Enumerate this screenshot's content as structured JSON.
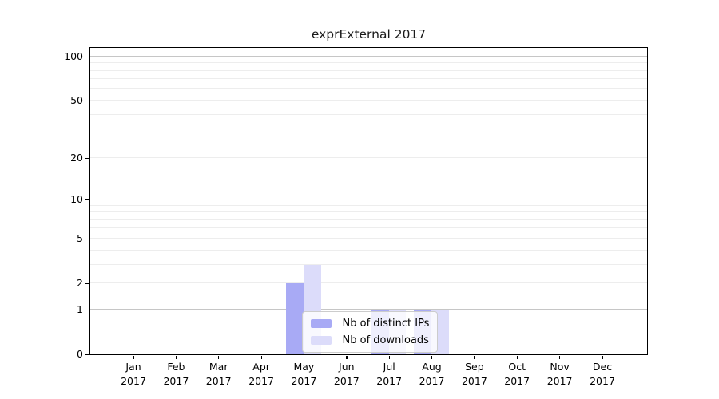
{
  "title": "exprExternal 2017",
  "chart_data": {
    "type": "bar",
    "title": "exprExternal 2017",
    "scale": "log1p",
    "grid": true,
    "categories": [
      "Jan 2017",
      "Feb 2017",
      "Mar 2017",
      "Apr 2017",
      "May 2017",
      "Jun 2017",
      "Jul 2017",
      "Aug 2017",
      "Sep 2017",
      "Oct 2017",
      "Nov 2017",
      "Dec 2017"
    ],
    "series": [
      {
        "name": "Nb of distinct IPs",
        "color": "#a8aaf5",
        "values": [
          0,
          0,
          0,
          0,
          2,
          0,
          1,
          1,
          0,
          0,
          0,
          0
        ]
      },
      {
        "name": "Nb of downloads",
        "color": "#dcdcfa",
        "values": [
          0,
          0,
          0,
          0,
          3,
          0,
          1,
          1,
          0,
          0,
          0,
          0
        ]
      }
    ],
    "y_ticks": [
      0,
      1,
      2,
      5,
      10,
      20,
      50,
      100
    ],
    "y_major_gridlines": [
      1,
      10,
      100
    ],
    "y_minor_gridlines": [
      2,
      3,
      4,
      5,
      6,
      7,
      8,
      9,
      20,
      30,
      40,
      50,
      60,
      70,
      80,
      90
    ],
    "ylim": [
      0,
      115
    ],
    "xlabel": "",
    "ylabel": "",
    "legend_position": "inside lower-center"
  },
  "colors": {
    "grid_major": "#c6c6c6",
    "grid_minor": "#ededed",
    "axis": "#000000",
    "legend_bg": "rgba(255,255,255,0.8)",
    "legend_border": "#cccccc",
    "text": "#000000"
  }
}
